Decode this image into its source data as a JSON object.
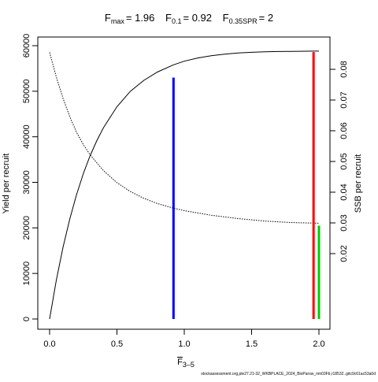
{
  "chart_data": {
    "type": "line",
    "title": {
      "fmax_sym": "F",
      "fmax_sub": "max",
      "fmax_val": "= 1.96",
      "f01_sym": "F",
      "f01_sub": "0.1",
      "f01_val": "= 0.92",
      "fspr_sym": "F",
      "fspr_sub": "0.35SPR",
      "fspr_val": "= 2"
    },
    "xlabel": {
      "sym": "F",
      "sub": "3–5"
    },
    "ylabel_left": "Yield per recruit",
    "ylabel_right": "SSB per recruit",
    "xlim": [
      0,
      2.0
    ],
    "ylim_left": [
      0,
      60000
    ],
    "ylim_right": [
      0,
      0.088
    ],
    "x_ticks": [
      "0.0",
      "0.5",
      "1.0",
      "1.5",
      "2.0"
    ],
    "y_left_ticks": [
      "0",
      "10000",
      "20000",
      "30000",
      "40000",
      "50000",
      "60000"
    ],
    "y_right_ticks": [
      "0.02",
      "0.03",
      "0.04",
      "0.05",
      "0.06",
      "0.07",
      "0.08"
    ],
    "series": [
      {
        "axis": "left",
        "style": "solid",
        "color": "#000000",
        "x": [
          0,
          0.05,
          0.1,
          0.15,
          0.2,
          0.25,
          0.3,
          0.35,
          0.4,
          0.5,
          0.6,
          0.7,
          0.8,
          0.92,
          1.0,
          1.1,
          1.2,
          1.3,
          1.4,
          1.5,
          1.6,
          1.7,
          1.8,
          1.96,
          2.0
        ],
        "y": [
          0,
          8500,
          15800,
          22000,
          27300,
          31900,
          35800,
          39100,
          42000,
          46600,
          50000,
          52400,
          54200,
          55800,
          56600,
          57300,
          57800,
          58150,
          58400,
          58550,
          58650,
          58720,
          58760,
          58800,
          58800
        ]
      },
      {
        "axis": "right",
        "style": "dotted",
        "color": "#000000",
        "x": [
          0,
          0.05,
          0.1,
          0.15,
          0.2,
          0.25,
          0.3,
          0.4,
          0.5,
          0.6,
          0.7,
          0.8,
          0.92,
          1.0,
          1.2,
          1.4,
          1.6,
          1.8,
          2.0
        ],
        "y": [
          0.0855,
          0.0775,
          0.0705,
          0.0645,
          0.0595,
          0.0555,
          0.0522,
          0.047,
          0.0431,
          0.0402,
          0.038,
          0.0363,
          0.0348,
          0.034,
          0.0325,
          0.0314,
          0.0306,
          0.0301,
          0.0299
        ]
      }
    ],
    "reference_lines": [
      {
        "label": "F0.1",
        "x": 0.92,
        "y_from": 0,
        "y_to": 53000,
        "color": "#0000ff"
      },
      {
        "label": "Fmax",
        "x": 1.96,
        "y_from": 0,
        "y_to": 58600,
        "color": "#ff0000"
      },
      {
        "label": "F0.35SPR",
        "x": 2.0,
        "y_from": 0,
        "y_to": 20500,
        "color": "#00cc00"
      }
    ],
    "grid": false,
    "legend": "none"
  },
  "footer": "stockassessment.org,ple27.21-32_WKBPLACE_2024_BioParsw_nm03Fb,r18532..gitc9c61ac53a0d"
}
